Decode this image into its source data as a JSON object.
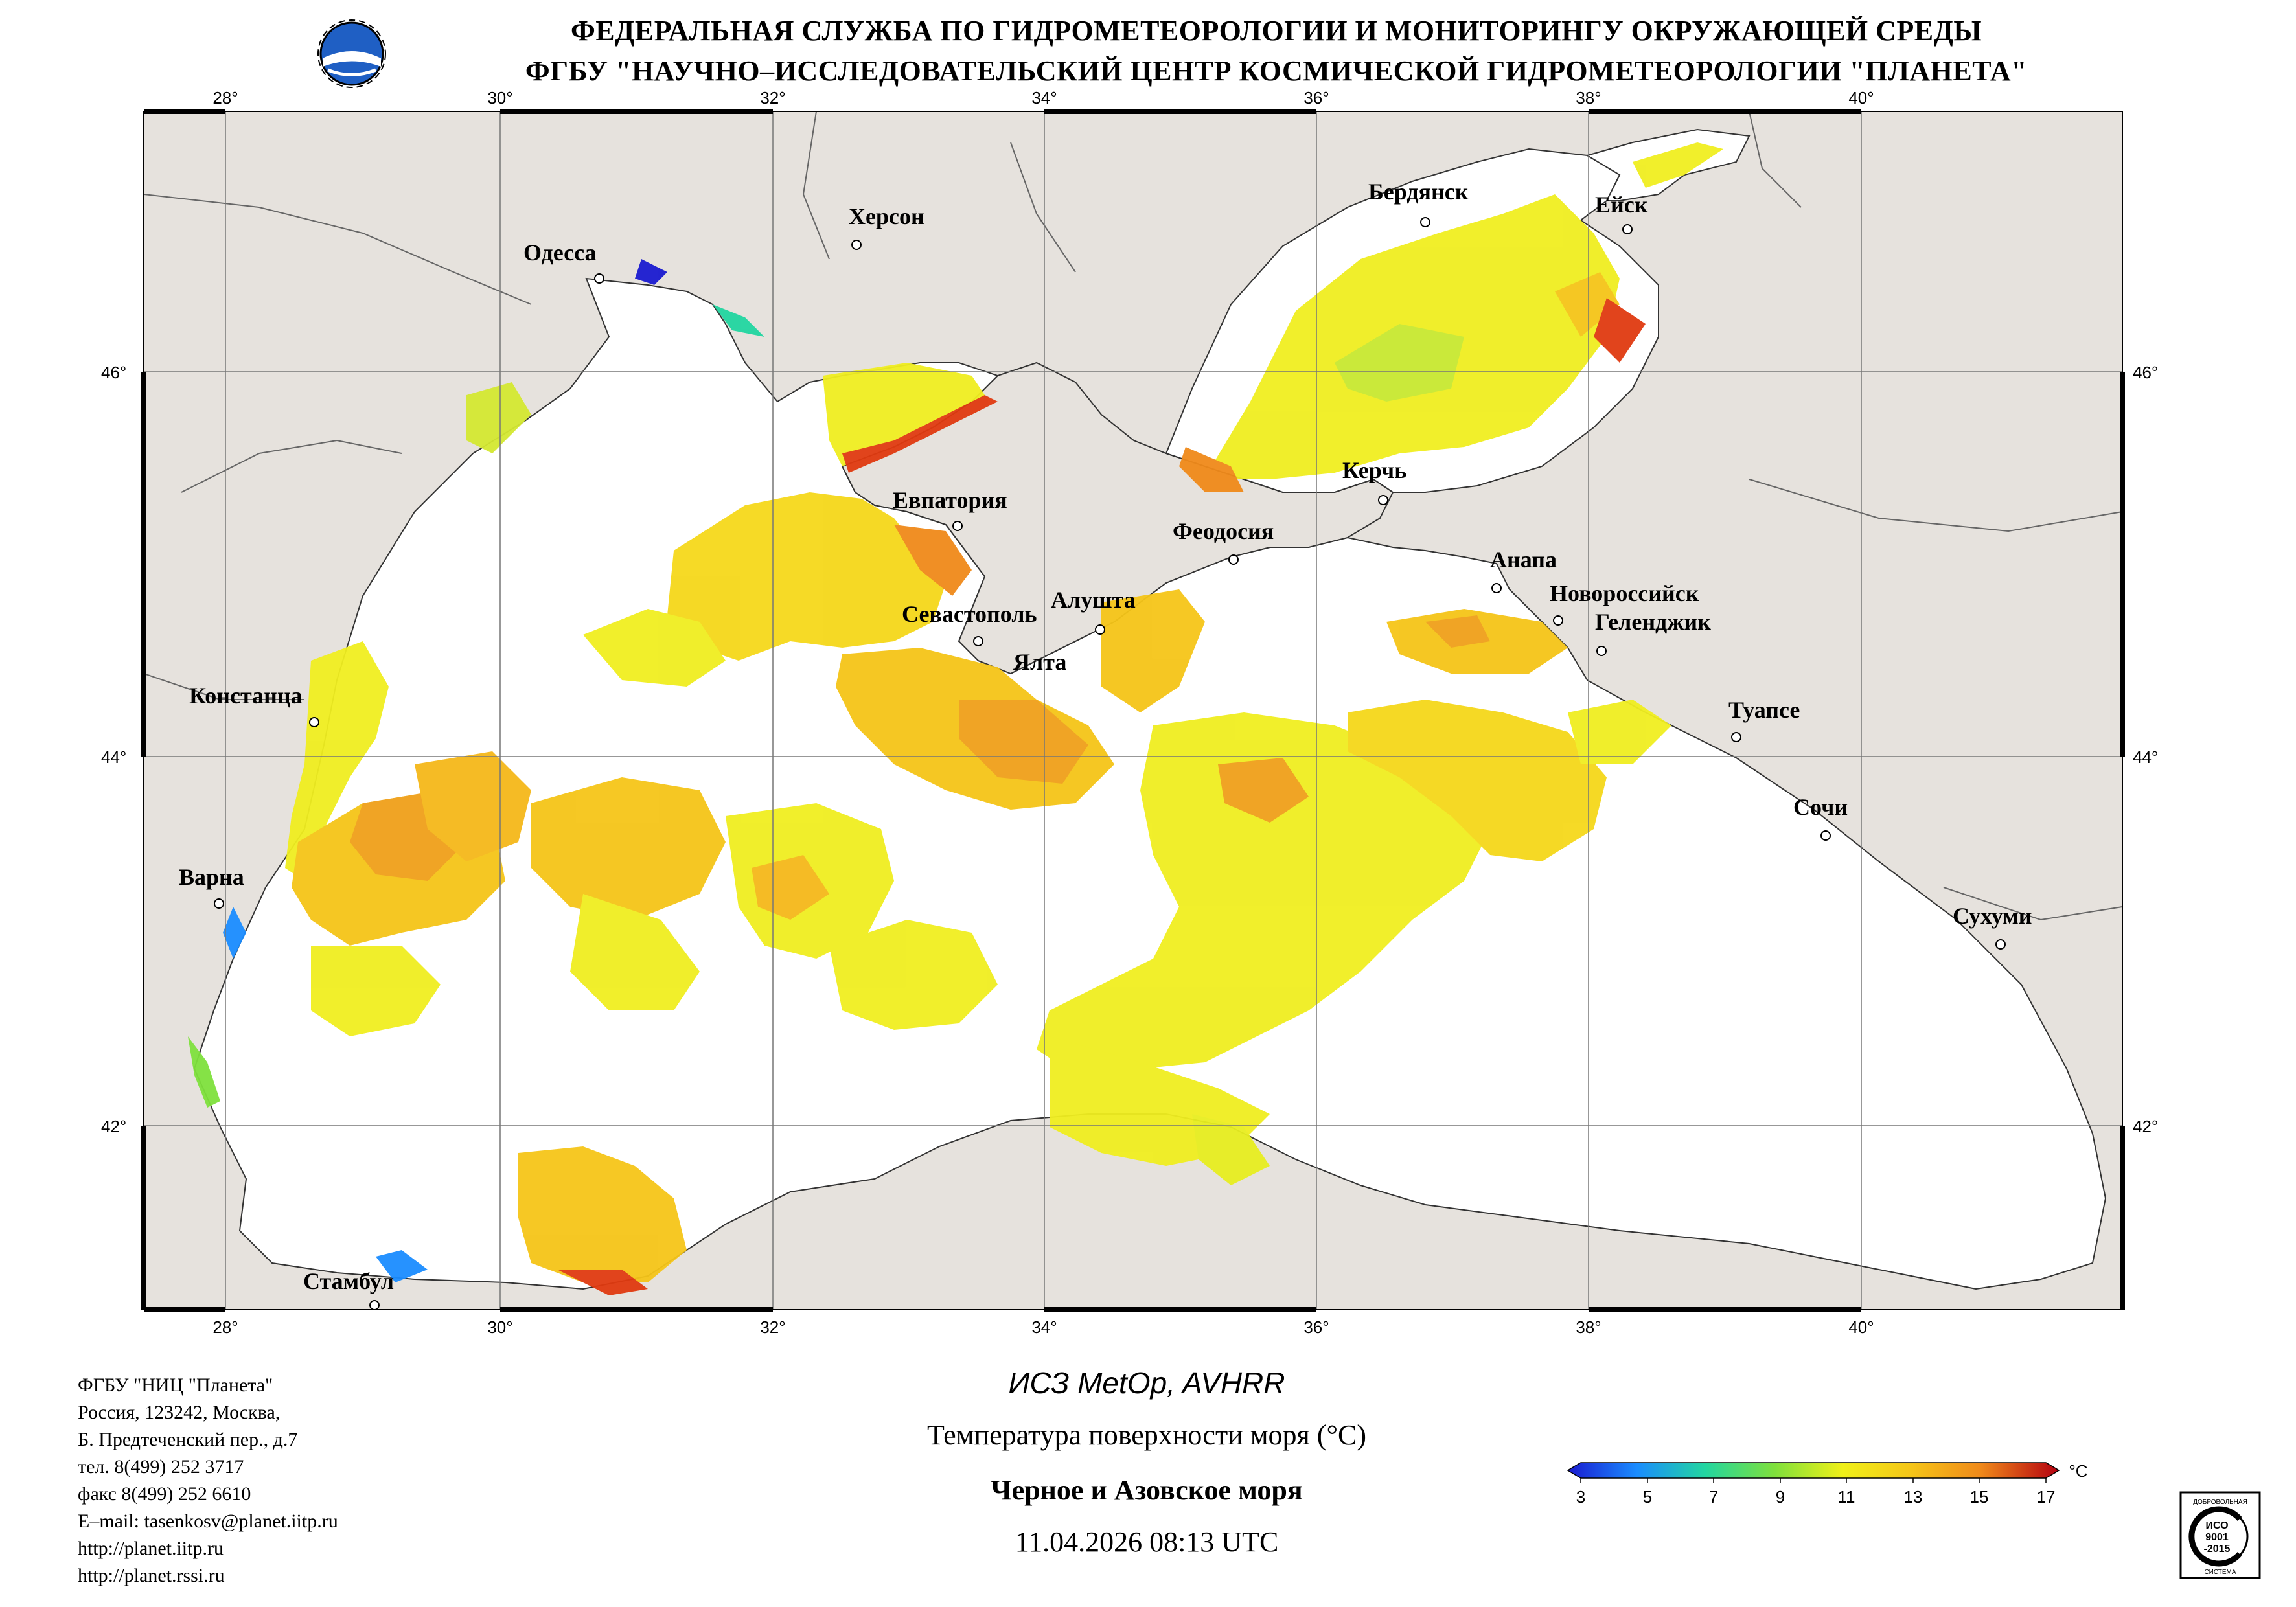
{
  "header": {
    "line1": "ФЕДЕРАЛЬНАЯ СЛУЖБА ПО ГИДРОМЕТЕОРОЛОГИИ И МОНИТОРИНГУ ОКРУЖАЮЩЕЙ СРЕДЫ",
    "line2": "ФГБУ \"НАУЧНО–ИССЛЕДОВАТЕЛЬСКИЙ ЦЕНТР КОСМИЧЕСКОЙ ГИДРОМЕТЕОРОЛОГИИ \"ПЛАНЕТА\""
  },
  "map": {
    "lon_labels": [
      "28°",
      "30°",
      "32°",
      "34°",
      "36°",
      "38°",
      "40°"
    ],
    "lat_labels": [
      "46°",
      "44°",
      "42°"
    ],
    "cities": [
      {
        "name": "Одесса"
      },
      {
        "name": "Херсон"
      },
      {
        "name": "Бердянск"
      },
      {
        "name": "Ейск"
      },
      {
        "name": "Керчь"
      },
      {
        "name": "Евпатория"
      },
      {
        "name": "Феодосия"
      },
      {
        "name": "Анапа"
      },
      {
        "name": "Новороссийск"
      },
      {
        "name": "Геленджик"
      },
      {
        "name": "Севастополь"
      },
      {
        "name": "Алушта"
      },
      {
        "name": "Ялта"
      },
      {
        "name": "Констанца"
      },
      {
        "name": "Туапсе"
      },
      {
        "name": "Сочи"
      },
      {
        "name": "Варна"
      },
      {
        "name": "Сухуми"
      },
      {
        "name": "Стамбул"
      }
    ],
    "colors": {
      "land": "#e6e2dd",
      "sea_nodata": "#ffffff",
      "border": "#000000"
    }
  },
  "footer": {
    "org": "ФГБУ \"НИЦ \"Планета\"",
    "addr1": "Россия, 123242, Москва,",
    "addr2": "Б. Предтеченский пер., д.7",
    "tel": "тел. 8(499) 252 3717",
    "fax": "факс 8(499) 252 6610",
    "email": "E–mail: tasenkosv@planet.iitp.ru",
    "url1": "http://planet.iitp.ru",
    "url2": "http://planet.rssi.ru"
  },
  "caption": {
    "satellite": "ИСЗ MetOp, AVHRR",
    "parameter": "Температура поверхности моря (°С)",
    "region": "Черное и Азовское моря",
    "datetime": "11.04.2026 08:13 UTC"
  },
  "colorbar": {
    "unit": "°С",
    "ticks": [
      "3",
      "5",
      "7",
      "9",
      "11",
      "13",
      "15",
      "17"
    ],
    "colors": [
      "#1a1ad0",
      "#1a8cff",
      "#22d6a0",
      "#7ee03c",
      "#f0f018",
      "#f5c518",
      "#f08a1a",
      "#e03a10",
      "#b40010"
    ]
  },
  "certificate": {
    "line1": "ДОБРОВОЛЬНАЯ",
    "line2": "ИСО",
    "line3": "9001",
    "line4": "-2015",
    "line5": "СИСТЕМА"
  }
}
